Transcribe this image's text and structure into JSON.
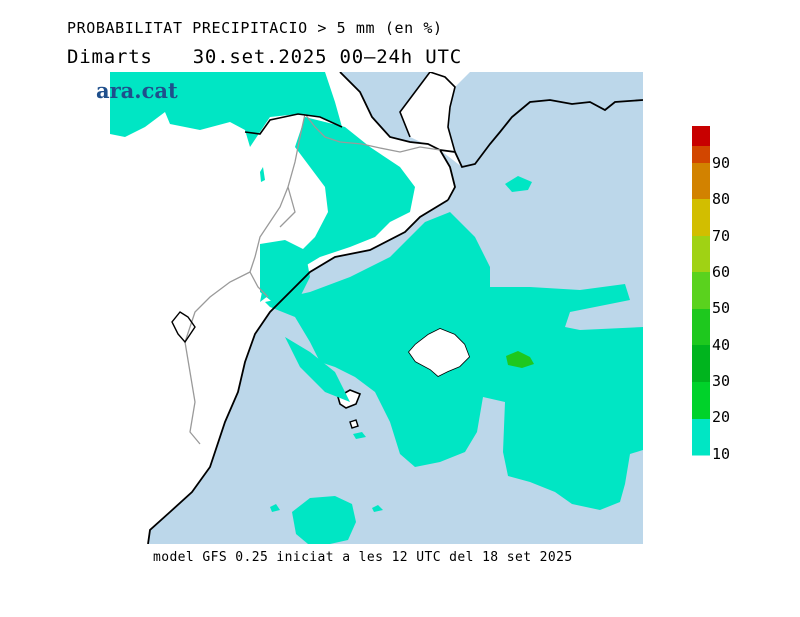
{
  "header": {
    "title": "PROBABILITAT PRECIPITACIO > 5 mm (en %)",
    "day": "Dimarts",
    "date_range": "30.set.2025 00–24h UTC"
  },
  "logo": {
    "text": "ara.cat",
    "color": "#1f4f8c"
  },
  "footer": {
    "model_info": "model GFS 0.25 iniciat a les 12 UTC del 18 set 2025"
  },
  "legend": {
    "levels": [
      {
        "label": "10",
        "color": "#00e6c4"
      },
      {
        "label": "20",
        "color": "#00d22a"
      },
      {
        "label": "30",
        "color": "#00b41e"
      },
      {
        "label": "40",
        "color": "#1ec81e"
      },
      {
        "label": "50",
        "color": "#5ad21e"
      },
      {
        "label": "60",
        "color": "#a0d214"
      },
      {
        "label": "70",
        "color": "#d2be00"
      },
      {
        "label": "80",
        "color": "#d28200"
      },
      {
        "label": "90",
        "color": "#d24600"
      },
      {
        "label": "",
        "color": "#c80000"
      }
    ]
  },
  "map": {
    "sea_color": "#bcd7ea",
    "land_color": "#ffffff",
    "precip_low_color": "#00e6c4",
    "precip_mid_color": "#1ec81e"
  }
}
